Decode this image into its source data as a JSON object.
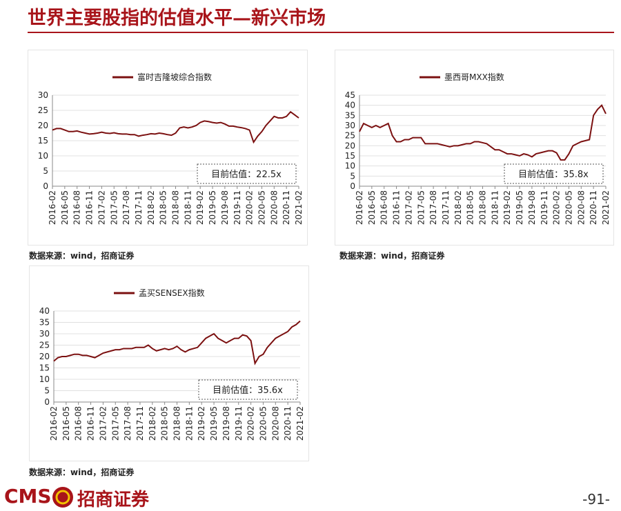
{
  "header": {
    "title": "世界主要股指的估值水平—新兴市场",
    "page": "-91-",
    "logo": {
      "brand": "CMS",
      "name": "招商证券"
    }
  },
  "sources": [
    "数据来源：wind，招商证券",
    "数据来源：wind，招商证券",
    "数据来源：wind，招商证券"
  ],
  "chart_data": [
    {
      "type": "line",
      "series": [
        {
          "name": "富时吉隆坡综合指数",
          "color": "#7b1010",
          "values": [
            18.5,
            19,
            19,
            18.5,
            18,
            18,
            18.2,
            17.8,
            17.5,
            17.2,
            17.3,
            17.5,
            17.8,
            17.5,
            17.4,
            17.6,
            17.3,
            17.2,
            17.2,
            17,
            17,
            16.5,
            16.8,
            17,
            17.3,
            17.2,
            17.5,
            17.3,
            17,
            16.8,
            17.5,
            19.2,
            19.5,
            19.2,
            19.5,
            20,
            21,
            21.5,
            21.3,
            21,
            20.8,
            21,
            20.5,
            19.8,
            19.8,
            19.5,
            19.3,
            19,
            18.5,
            14.5,
            16.5,
            18,
            20,
            21.5,
            23,
            22.5,
            22.5,
            23,
            24.5,
            23.5,
            22.5
          ]
        }
      ],
      "x": [
        "2016-02",
        "2016-03",
        "2016-04",
        "2016-05",
        "2016-06",
        "2016-07",
        "2016-08",
        "2016-09",
        "2016-10",
        "2016-11",
        "2016-12",
        "2017-01",
        "2017-02",
        "2017-03",
        "2017-04",
        "2017-05",
        "2017-06",
        "2017-07",
        "2017-08",
        "2017-09",
        "2017-10",
        "2017-11",
        "2017-12",
        "2018-01",
        "2018-02",
        "2018-03",
        "2018-04",
        "2018-05",
        "2018-06",
        "2018-07",
        "2018-08",
        "2018-09",
        "2018-10",
        "2018-11",
        "2018-12",
        "2019-01",
        "2019-02",
        "2019-03",
        "2019-04",
        "2019-05",
        "2019-06",
        "2019-07",
        "2019-08",
        "2019-09",
        "2019-10",
        "2019-11",
        "2019-12",
        "2020-01",
        "2020-02",
        "2020-03",
        "2020-04",
        "2020-05",
        "2020-06",
        "2020-07",
        "2020-08",
        "2020-09",
        "2020-10",
        "2020-11",
        "2020-12",
        "2021-01",
        "2021-02"
      ],
      "xticks": [
        "2016-02",
        "2016-05",
        "2016-08",
        "2016-11",
        "2017-02",
        "2017-05",
        "2017-08",
        "2017-11",
        "2018-02",
        "2018-05",
        "2018-08",
        "2018-11",
        "2019-02",
        "2019-05",
        "2019-08",
        "2019-11",
        "2020-02",
        "2020-05",
        "2020-08",
        "2020-11",
        "2021-02"
      ],
      "ylim": [
        0,
        30
      ],
      "yticks": [
        0,
        5,
        10,
        15,
        20,
        25,
        30
      ],
      "grid": true,
      "annotation": "目前估值：22.5x"
    },
    {
      "type": "line",
      "series": [
        {
          "name": "墨西哥MXX指数",
          "color": "#7b1010",
          "values": [
            27,
            31,
            30,
            29,
            30,
            29,
            30,
            31,
            25,
            22,
            22,
            23,
            23,
            24,
            24,
            24,
            21,
            21,
            21,
            21,
            20.5,
            20,
            19.5,
            20,
            20,
            20.5,
            21,
            21,
            22,
            22,
            21.5,
            21,
            19.5,
            18,
            18,
            17,
            16,
            16,
            15.5,
            15,
            16,
            15.5,
            14.5,
            16,
            16.5,
            17,
            17.5,
            17.5,
            16.5,
            13,
            13,
            16,
            20,
            21,
            22,
            22.5,
            23,
            35,
            38,
            40,
            35.8
          ]
        }
      ],
      "x": [
        "2016-02",
        "2016-03",
        "2016-04",
        "2016-05",
        "2016-06",
        "2016-07",
        "2016-08",
        "2016-09",
        "2016-10",
        "2016-11",
        "2016-12",
        "2017-01",
        "2017-02",
        "2017-03",
        "2017-04",
        "2017-05",
        "2017-06",
        "2017-07",
        "2017-08",
        "2017-09",
        "2017-10",
        "2017-11",
        "2017-12",
        "2018-01",
        "2018-02",
        "2018-03",
        "2018-04",
        "2018-05",
        "2018-06",
        "2018-07",
        "2018-08",
        "2018-09",
        "2018-10",
        "2018-11",
        "2018-12",
        "2019-01",
        "2019-02",
        "2019-03",
        "2019-04",
        "2019-05",
        "2019-06",
        "2019-07",
        "2019-08",
        "2019-09",
        "2019-10",
        "2019-11",
        "2019-12",
        "2020-01",
        "2020-02",
        "2020-03",
        "2020-04",
        "2020-05",
        "2020-06",
        "2020-07",
        "2020-08",
        "2020-09",
        "2020-10",
        "2020-11",
        "2020-12",
        "2021-01",
        "2021-02"
      ],
      "xticks": [
        "2016-02",
        "2016-05",
        "2016-08",
        "2016-11",
        "2017-02",
        "2017-05",
        "2017-08",
        "2017-11",
        "2018-02",
        "2018-05",
        "2018-08",
        "2018-11",
        "2019-02",
        "2019-05",
        "2019-08",
        "2019-11",
        "2020-02",
        "2020-05",
        "2020-08",
        "2020-11",
        "2021-02"
      ],
      "ylim": [
        0,
        45
      ],
      "yticks": [
        0,
        5,
        10,
        15,
        20,
        25,
        30,
        35,
        40,
        45
      ],
      "grid": true,
      "annotation": "目前估值：35.8x"
    },
    {
      "type": "line",
      "series": [
        {
          "name": "孟买SENSEX指数",
          "color": "#7b1010",
          "values": [
            18,
            19.5,
            20,
            20,
            20.5,
            21,
            21,
            20.5,
            20.5,
            20,
            19.5,
            20.5,
            21.5,
            22,
            22.5,
            23,
            23,
            23.5,
            23.5,
            23.5,
            24,
            24,
            24,
            25,
            23.5,
            22.5,
            23,
            23.5,
            23,
            23.5,
            24.5,
            23,
            22,
            23,
            23.5,
            24,
            26,
            28,
            29,
            30,
            28,
            27,
            26,
            27,
            28,
            28,
            29.5,
            29,
            27,
            17,
            20,
            21,
            24,
            26,
            28,
            29,
            30,
            31,
            33,
            34,
            35.6
          ]
        }
      ],
      "x": [
        "2016-02",
        "2016-03",
        "2016-04",
        "2016-05",
        "2016-06",
        "2016-07",
        "2016-08",
        "2016-09",
        "2016-10",
        "2016-11",
        "2016-12",
        "2017-01",
        "2017-02",
        "2017-03",
        "2017-04",
        "2017-05",
        "2017-06",
        "2017-07",
        "2017-08",
        "2017-09",
        "2017-10",
        "2017-11",
        "2017-12",
        "2018-01",
        "2018-02",
        "2018-03",
        "2018-04",
        "2018-05",
        "2018-06",
        "2018-07",
        "2018-08",
        "2018-09",
        "2018-10",
        "2018-11",
        "2018-12",
        "2019-01",
        "2019-02",
        "2019-03",
        "2019-04",
        "2019-05",
        "2019-06",
        "2019-07",
        "2019-08",
        "2019-09",
        "2019-10",
        "2019-11",
        "2019-12",
        "2020-01",
        "2020-02",
        "2020-03",
        "2020-04",
        "2020-05",
        "2020-06",
        "2020-07",
        "2020-08",
        "2020-09",
        "2020-10",
        "2020-11",
        "2020-12",
        "2021-01",
        "2021-02"
      ],
      "xticks": [
        "2016-02",
        "2016-05",
        "2016-08",
        "2016-11",
        "2017-02",
        "2017-05",
        "2017-08",
        "2017-11",
        "2018-02",
        "2018-05",
        "2018-08",
        "2018-11",
        "2019-02",
        "2019-05",
        "2019-08",
        "2019-11",
        "2020-02",
        "2020-05",
        "2020-08",
        "2020-11",
        "2021-02"
      ],
      "ylim": [
        0,
        40
      ],
      "yticks": [
        0,
        5,
        10,
        15,
        20,
        25,
        30,
        35,
        40
      ],
      "grid": true,
      "annotation": "目前估值：35.6x"
    }
  ]
}
